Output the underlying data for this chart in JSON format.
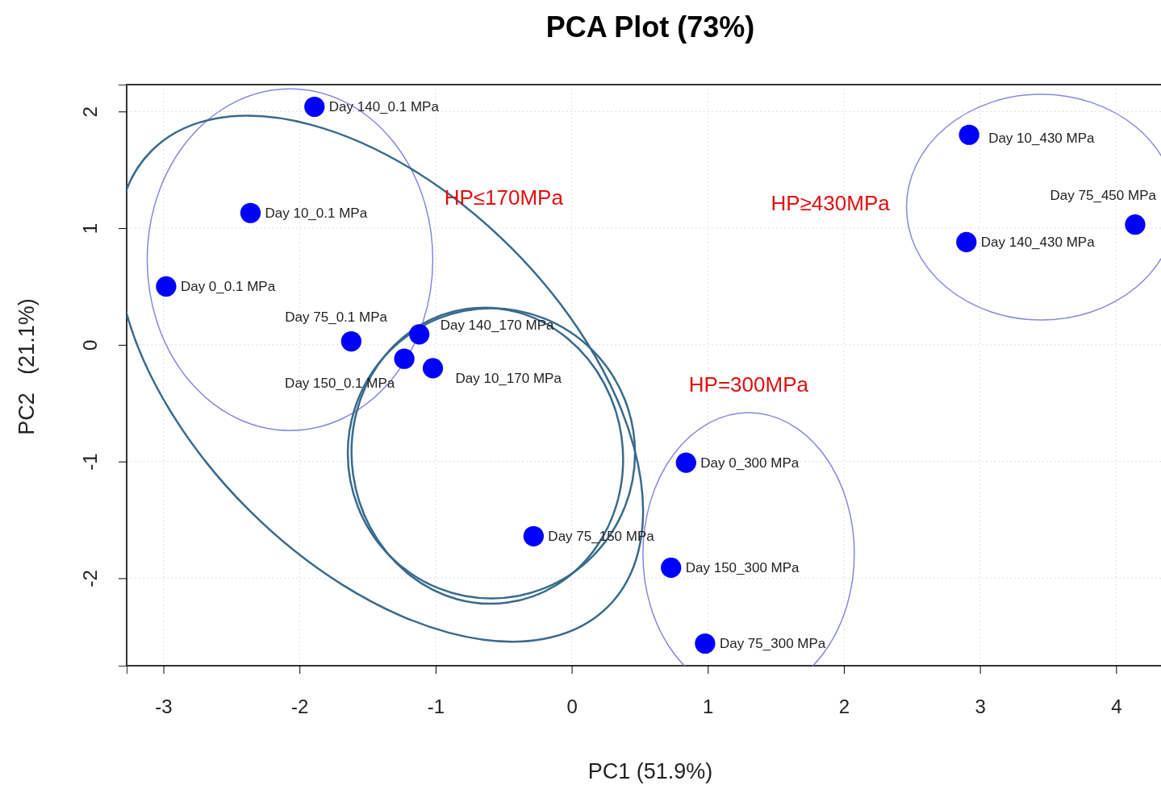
{
  "chart_data": {
    "type": "scatter",
    "title": "PCA Plot (73%)",
    "xlabel": "PC1  (51.9%)",
    "ylabel": "PC2   (21.1%)",
    "xlim": [
      -3.27,
      4.33
    ],
    "ylim": [
      -2.75,
      2.23
    ],
    "xticks": [
      -3,
      -2,
      -1,
      0,
      1,
      2,
      3,
      4
    ],
    "yticks": [
      -2,
      -1,
      0,
      1,
      2
    ],
    "grid": true,
    "marker": "circle",
    "series": [
      {
        "color": "#0000ff",
        "x": [
          -1.89,
          -2.36,
          -2.98,
          -1.62,
          -1.12,
          -1.23,
          -1.02,
          -0.28,
          0.84,
          0.73,
          0.98,
          2.92,
          2.9,
          4.14
        ],
        "values": [
          2.04,
          1.13,
          0.5,
          0.03,
          0.09,
          -0.12,
          -0.2,
          -1.64,
          -1.01,
          -1.91,
          -2.56,
          1.8,
          0.88,
          1.03
        ]
      }
    ],
    "annotations": [
      {
        "text": "Day 140_0.1 MPa",
        "x": -1.89,
        "y": 2.04
      },
      {
        "text": "Day 10_0.1 MPa",
        "x": -2.36,
        "y": 1.13
      },
      {
        "text": "Day 0_0.1 MPa",
        "x": -2.98,
        "y": 0.5
      },
      {
        "text": "Day 75_0.1 MPa",
        "x": -1.62,
        "y": 0.03
      },
      {
        "text": "Day 140_170 MPa",
        "x": -1.12,
        "y": 0.09
      },
      {
        "text": "Day 150_0.1 MPa",
        "x": -1.23,
        "y": -0.12
      },
      {
        "text": "Day 10_170 MPa",
        "x": -1.02,
        "y": -0.2
      },
      {
        "text": "Day 75_150 MPa",
        "x": -0.28,
        "y": -1.64
      },
      {
        "text": "Day 0_300 MPa",
        "x": 0.84,
        "y": -1.01
      },
      {
        "text": "Day 150_300 MPa",
        "x": 0.73,
        "y": -1.91
      },
      {
        "text": "Day 75_300 MPa",
        "x": 0.98,
        "y": -2.56
      },
      {
        "text": "Day 10_430 MPa",
        "x": 2.92,
        "y": 1.8
      },
      {
        "text": "Day 140_430 MPa",
        "x": 2.9,
        "y": 0.88
      },
      {
        "text": "Day 75_450 MPa",
        "x": 4.14,
        "y": 1.03
      },
      "HP≤170MPa",
      "HP≥430MPa",
      "HP=300MPa"
    ]
  }
}
